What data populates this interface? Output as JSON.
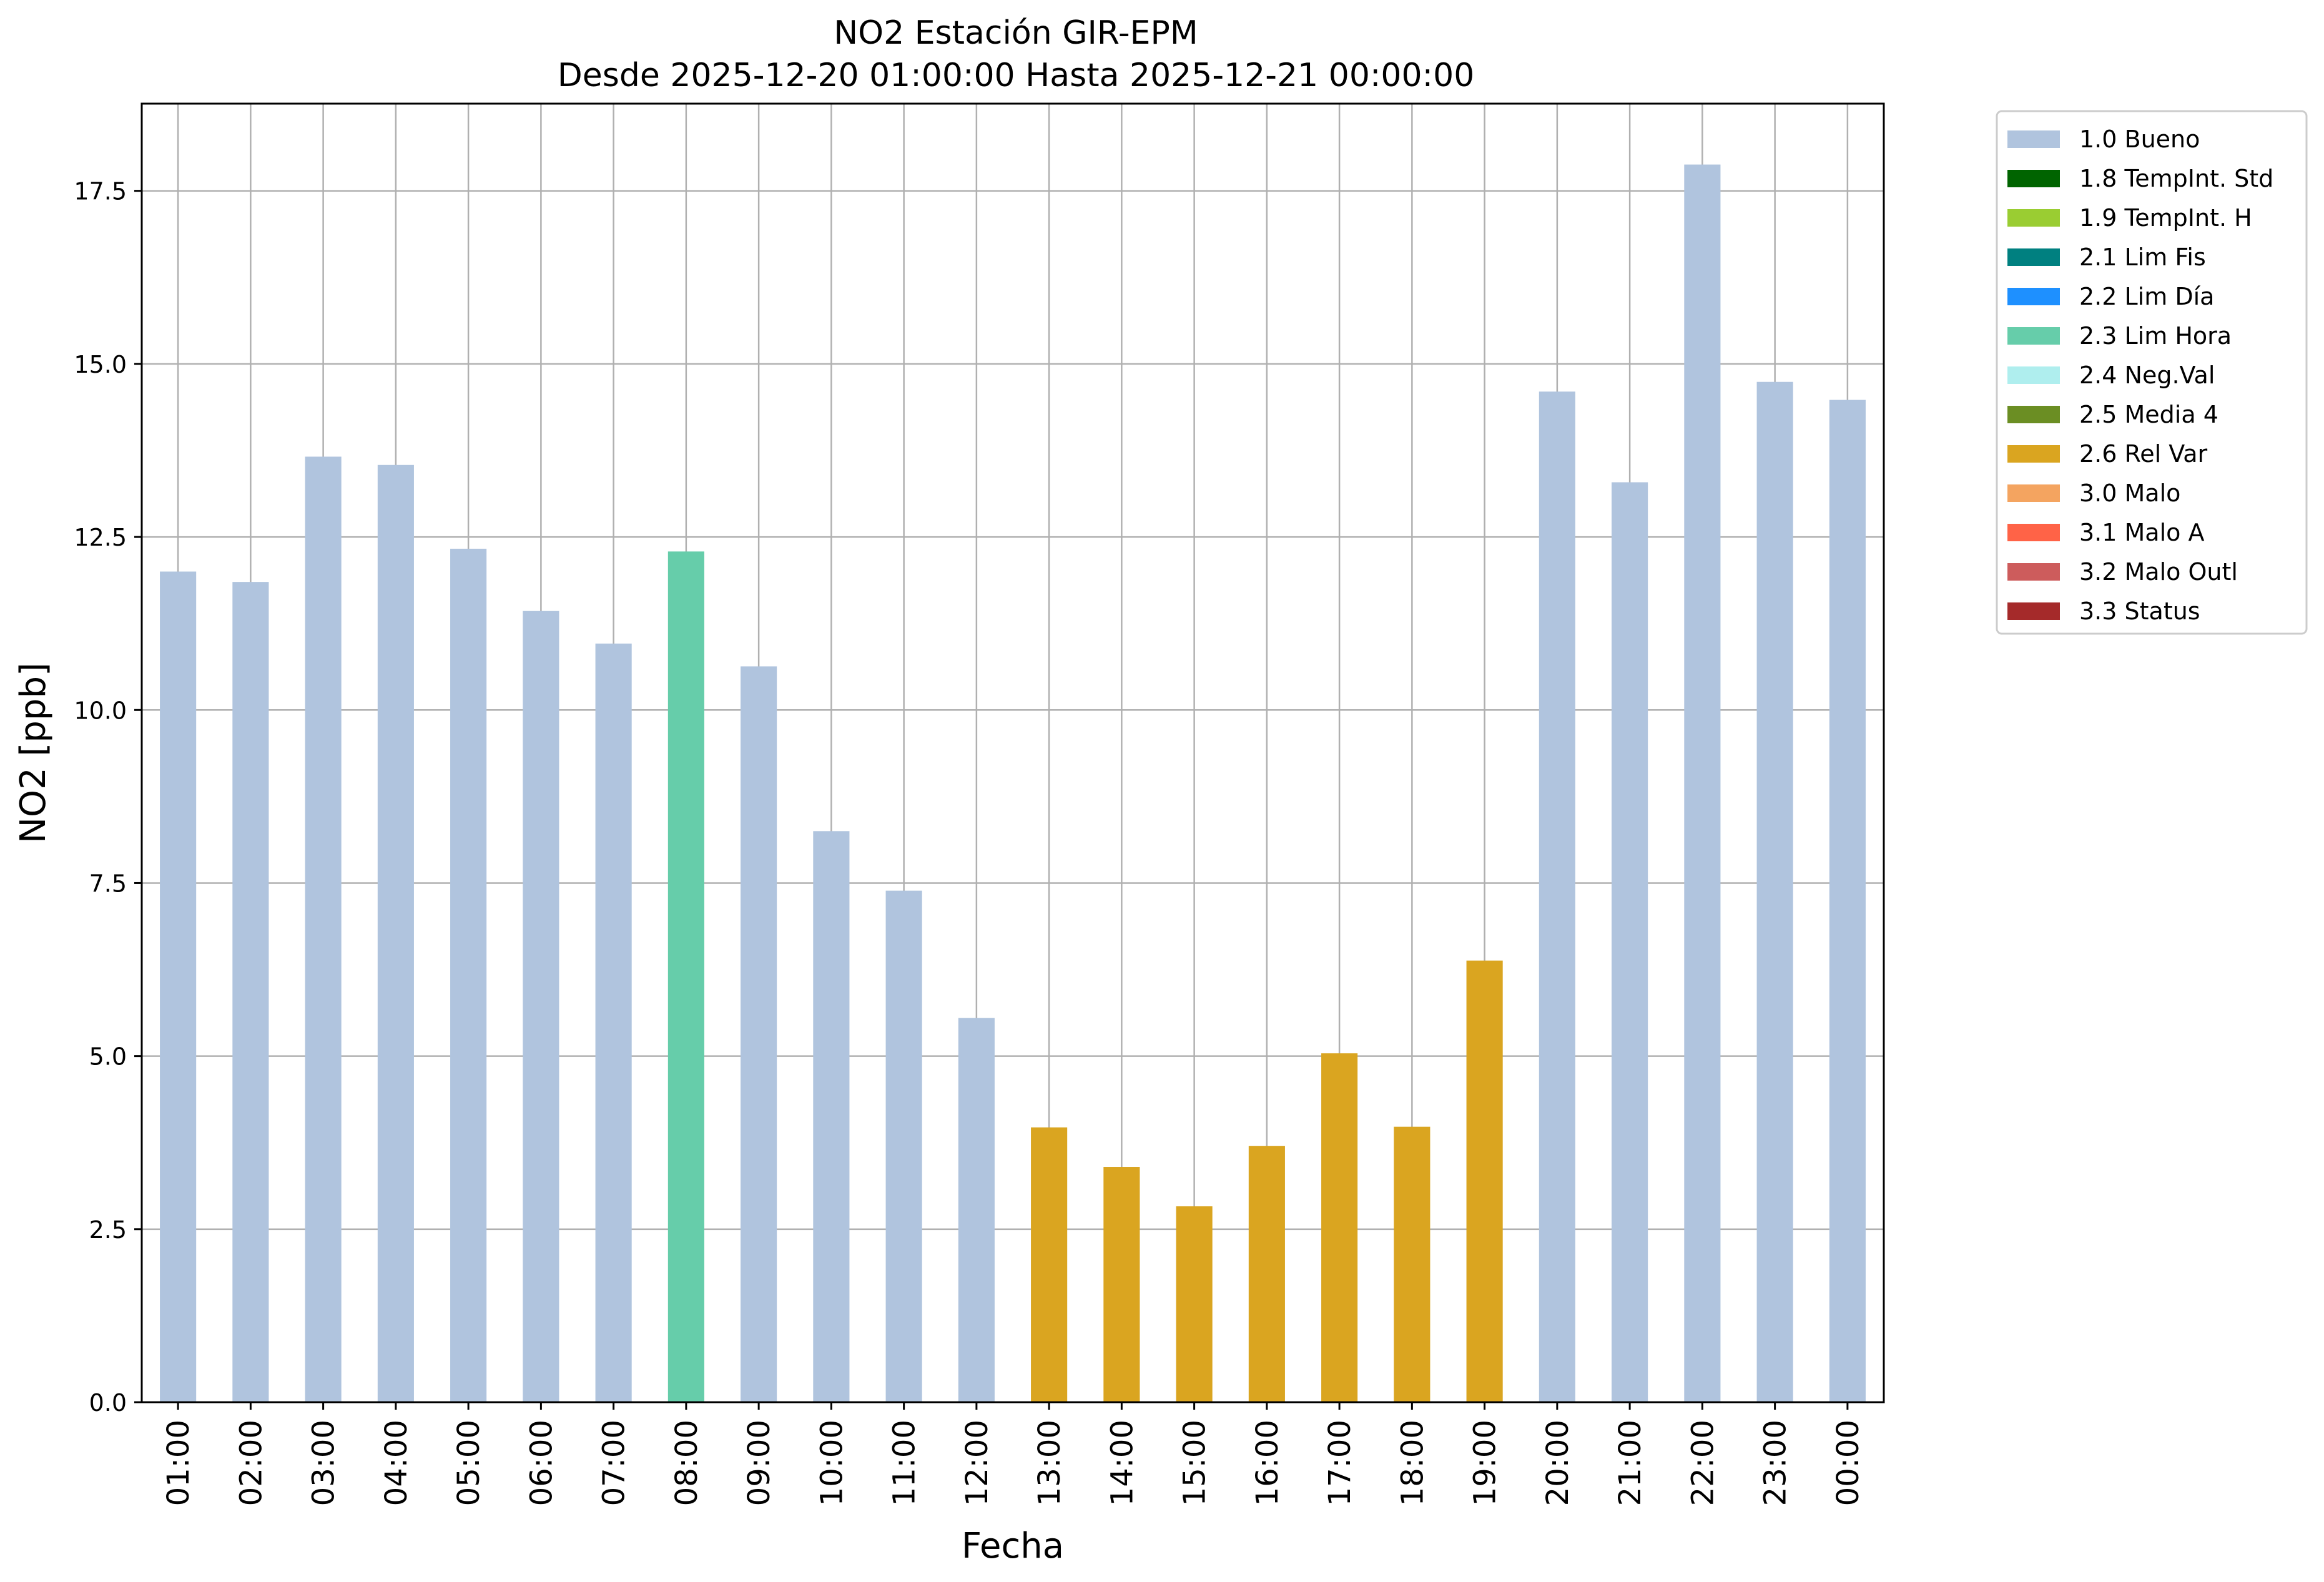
{
  "chart_data": {
    "type": "bar",
    "title": "NO2 Estación GIR-EPM",
    "subtitle": "Desde 2025-12-20 01:00:00 Hasta 2025-12-21 00:00:00",
    "xlabel": "Fecha",
    "ylabel": "NO2 [ppb]",
    "ylim": [
      0,
      18.76
    ],
    "yticks": [
      "0.0",
      "2.5",
      "5.0",
      "7.5",
      "10.0",
      "12.5",
      "15.0",
      "17.5"
    ],
    "grid": true,
    "legend_position": "outside-top-right",
    "categories": [
      "01:00",
      "02:00",
      "03:00",
      "04:00",
      "05:00",
      "06:00",
      "07:00",
      "08:00",
      "09:00",
      "10:00",
      "11:00",
      "12:00",
      "13:00",
      "14:00",
      "15:00",
      "16:00",
      "17:00",
      "18:00",
      "19:00",
      "20:00",
      "21:00",
      "22:00",
      "23:00",
      "00:00"
    ],
    "values": [
      12.0,
      11.85,
      13.66,
      13.54,
      12.33,
      11.43,
      10.96,
      12.29,
      10.63,
      8.25,
      7.39,
      5.55,
      3.97,
      3.4,
      2.83,
      3.7,
      5.04,
      3.98,
      6.38,
      14.6,
      13.29,
      17.88,
      14.74,
      14.48
    ],
    "flags": [
      "1.0 Bueno",
      "1.0 Bueno",
      "1.0 Bueno",
      "1.0 Bueno",
      "1.0 Bueno",
      "1.0 Bueno",
      "1.0 Bueno",
      "2.3 Lim Hora",
      "1.0 Bueno",
      "1.0 Bueno",
      "1.0 Bueno",
      "1.0 Bueno",
      "2.6 Rel Var",
      "2.6 Rel Var",
      "2.6 Rel Var",
      "2.6 Rel Var",
      "2.6 Rel Var",
      "2.6 Rel Var",
      "2.6 Rel Var",
      "1.0 Bueno",
      "1.0 Bueno",
      "1.0 Bueno",
      "1.0 Bueno",
      "1.0 Bueno"
    ],
    "legend": [
      {
        "label": "1.0 Bueno",
        "color": "#b0c4de"
      },
      {
        "label": "1.8 TempInt. Std",
        "color": "#006400"
      },
      {
        "label": "1.9 TempInt. H",
        "color": "#9acd32"
      },
      {
        "label": "2.1 Lim Fis",
        "color": "#008080"
      },
      {
        "label": "2.2 Lim Día",
        "color": "#1e90ff"
      },
      {
        "label": "2.3 Lim Hora",
        "color": "#66cdaa"
      },
      {
        "label": "2.4 Neg.Val",
        "color": "#afeeee"
      },
      {
        "label": "2.5 Media 4",
        "color": "#6b8e23"
      },
      {
        "label": "2.6 Rel Var",
        "color": "#daa520"
      },
      {
        "label": "3.0 Malo",
        "color": "#f4a460"
      },
      {
        "label": "3.1 Malo A",
        "color": "#ff6347"
      },
      {
        "label": "3.2 Malo Outl",
        "color": "#cd5c5c"
      },
      {
        "label": "3.3 Status",
        "color": "#a52a2a"
      }
    ]
  }
}
